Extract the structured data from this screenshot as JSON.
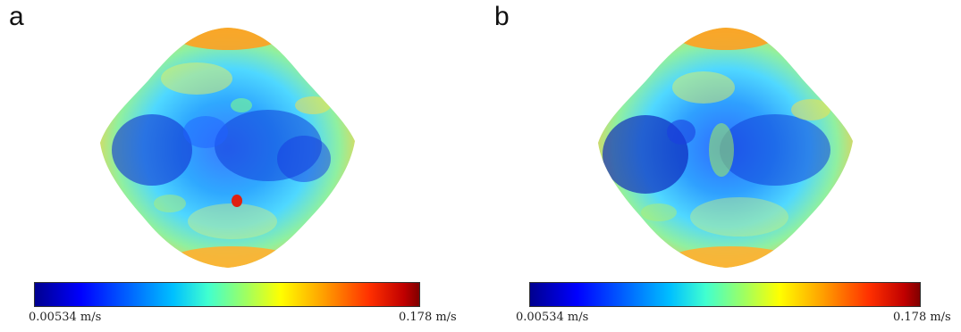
{
  "panels": [
    {
      "label": "a",
      "colorbar_min": "0.00534 m/s",
      "colorbar_max": "0.178 m/s"
    },
    {
      "label": "b",
      "colorbar_min": "0.00534 m/s",
      "colorbar_max": "0.178 m/s"
    }
  ],
  "colors": {
    "low": "#00008f",
    "mid": "#40ffd0",
    "high": "#800000"
  }
}
